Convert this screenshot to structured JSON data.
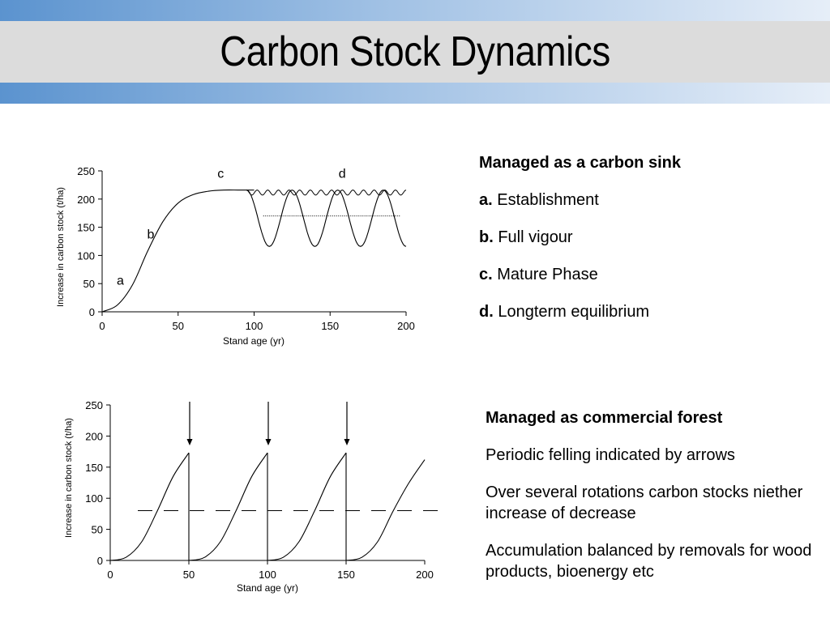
{
  "slide": {
    "title": "Carbon Stock Dynamics"
  },
  "chart_data": [
    {
      "type": "line",
      "title": "",
      "xlabel": "Stand age (yr)",
      "ylabel": "Increase in carbon stock (t/ha)",
      "xlim": [
        0,
        200
      ],
      "ylim": [
        0,
        250
      ],
      "xticks": [
        "0",
        "50",
        "100",
        "150",
        "200"
      ],
      "yticks": [
        "0",
        "50",
        "100",
        "150",
        "200",
        "250"
      ],
      "grid": false,
      "annotations": [
        {
          "text": "a",
          "x": 12,
          "y": 48
        },
        {
          "text": "b",
          "x": 32,
          "y": 130
        },
        {
          "text": "c",
          "x": 78,
          "y": 238
        },
        {
          "text": "d",
          "x": 158,
          "y": 238
        }
      ],
      "series": [
        {
          "x": [
            0,
            10,
            20,
            30,
            40,
            50,
            60,
            70,
            80,
            90,
            100
          ],
          "y": [
            0,
            12,
            48,
            108,
            160,
            193,
            208,
            214,
            216,
            216,
            216
          ]
        },
        {
          "x": [
            95,
            110,
            125,
            140,
            155,
            170,
            185,
            200
          ],
          "y": [
            216,
            116,
            216,
            116,
            216,
            116,
            216,
            125
          ]
        },
        {
          "x": [
            95,
            200
          ],
          "y": [
            216,
            216
          ],
          "pattern": "short oscillation between 207 and 216"
        },
        {
          "x": [
            106,
            196
          ],
          "y": [
            170,
            170
          ],
          "style": "dotted"
        }
      ]
    },
    {
      "type": "line",
      "title": "",
      "xlabel": "Stand age (yr)",
      "ylabel": "Increase in carbon stock (t/ha)",
      "xlim": [
        0,
        200
      ],
      "ylim": [
        0,
        250
      ],
      "xticks": [
        "0",
        "50",
        "100",
        "150",
        "200"
      ],
      "yticks": [
        "0",
        "50",
        "100",
        "150",
        "200",
        "250"
      ],
      "grid": false,
      "felling_arrows_x": [
        50,
        100,
        150
      ],
      "series": [
        {
          "x": [
            0,
            10,
            20,
            30,
            40,
            50,
            50,
            60,
            70,
            80,
            90,
            100,
            100,
            110,
            120,
            130,
            140,
            150,
            150,
            160,
            170,
            180,
            190,
            200
          ],
          "y": [
            0,
            5,
            30,
            80,
            135,
            173,
            0,
            5,
            30,
            80,
            135,
            173,
            0,
            5,
            30,
            80,
            135,
            173,
            0,
            5,
            30,
            80,
            125,
            162
          ]
        },
        {
          "x": [
            0,
            210
          ],
          "y": [
            80,
            80
          ],
          "style": "dashed"
        }
      ]
    }
  ],
  "panel1": {
    "heading": "Managed as a carbon sink",
    "items": [
      {
        "key": "a.",
        "text": " Establishment"
      },
      {
        "key": "b.",
        "text": " Full vigour"
      },
      {
        "key": "c.",
        "text": " Mature Phase"
      },
      {
        "key": "d.",
        "text": " Longterm equilibrium"
      }
    ]
  },
  "panel2": {
    "heading": "Managed as commercial forest",
    "lines": [
      "Periodic felling indicated by arrows",
      "Over several rotations carbon stocks niether increase of decrease",
      "Accumulation balanced by removals for wood products, bioenergy etc"
    ]
  }
}
